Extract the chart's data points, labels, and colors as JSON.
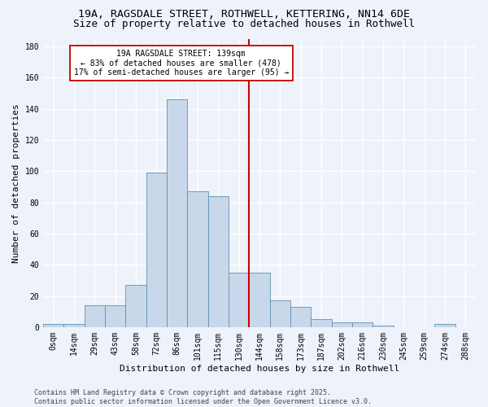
{
  "title_line1": "19A, RAGSDALE STREET, ROTHWELL, KETTERING, NN14 6DE",
  "title_line2": "Size of property relative to detached houses in Rothwell",
  "xlabel": "Distribution of detached houses by size in Rothwell",
  "ylabel": "Number of detached properties",
  "footer": "Contains HM Land Registry data © Crown copyright and database right 2025.\nContains public sector information licensed under the Open Government Licence v3.0.",
  "bin_labels": [
    "0sqm",
    "14sqm",
    "29sqm",
    "43sqm",
    "58sqm",
    "72sqm",
    "86sqm",
    "101sqm",
    "115sqm",
    "130sqm",
    "144sqm",
    "158sqm",
    "173sqm",
    "187sqm",
    "202sqm",
    "216sqm",
    "230sqm",
    "245sqm",
    "259sqm",
    "274sqm",
    "288sqm"
  ],
  "bar_values": [
    2,
    2,
    14,
    14,
    27,
    99,
    146,
    87,
    84,
    35,
    35,
    17,
    13,
    5,
    3,
    3,
    1,
    0,
    0,
    2,
    0
  ],
  "bar_color": "#c8d8ea",
  "bar_edgecolor": "#6090b0",
  "vline_color": "#cc0000",
  "annotation_text": "19A RAGSDALE STREET: 139sqm\n← 83% of detached houses are smaller (478)\n17% of semi-detached houses are larger (95) →",
  "annotation_box_color": "#ffffff",
  "annotation_box_edgecolor": "#cc0000",
  "ylim": [
    0,
    185
  ],
  "background_color": "#eef2fa",
  "grid_color": "#ffffff",
  "title_fontsize": 9.5,
  "subtitle_fontsize": 9,
  "axis_label_fontsize": 8,
  "tick_fontsize": 7,
  "annotation_fontsize": 7,
  "footer_fontsize": 6
}
